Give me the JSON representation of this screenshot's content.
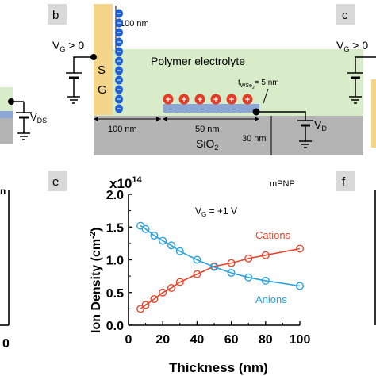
{
  "colors": {
    "gate": "#f5d58a",
    "electrolyte": "#d9ecc9",
    "substrate": "#b4b4b4",
    "channel": "#8ca6d6",
    "anion_blue": "#1f5fd1",
    "cation_red": "#e23b26",
    "cations_line": "#e8462c",
    "anions_line": "#2aa2dd"
  },
  "panel_labels": {
    "b": "b",
    "c": "c",
    "e": "e",
    "f": "f"
  },
  "panel_a": {
    "vds_label": "V",
    "vds_sub": "DS",
    "tick_label": "0",
    "ylabel_frag": "n"
  },
  "panel_b": {
    "vg_label": "V",
    "vg_sub": "G",
    "vg_rest": " > 0",
    "sg_s": "S",
    "sg_g": "G",
    "label_100nm_top": "100 nm",
    "electrolyte_label": "Polymer electrolyte",
    "twse_t": "t",
    "twse_sub": "WSe",
    "twse_sub2": "2",
    "twse_rest": "= 5 nm",
    "label_100nm_bottom": "100 nm",
    "label_50nm": "50 nm",
    "sio2": "SiO",
    "sio2_sub": "2",
    "label_30nm": "30 nm",
    "vd_label": "V",
    "vd_sub": "D",
    "minus": "−",
    "plus": "+"
  },
  "panel_c": {
    "vg_label": "V",
    "vg_sub": "G",
    "vg_rest": " > 0"
  },
  "chart_data": {
    "type": "line",
    "annotation_model": "mPNP",
    "annotation_vg": "V",
    "annotation_vg_sub": "G",
    "annotation_vg_rest": " = +1 V",
    "xlabel": "Thickness  (nm)",
    "ylabel": "Ion Density (cm",
    "ylabel_sup": "-2",
    "ylabel_end": ")",
    "scale_label": "x10",
    "scale_sup": "14",
    "xlim": [
      0,
      100
    ],
    "ylim": [
      0,
      2.0
    ],
    "xticks": [
      "0",
      "20",
      "40",
      "60",
      "80",
      "100"
    ],
    "yticks": [
      "0.0",
      "0.5",
      "1.0",
      "1.5",
      "2.0"
    ],
    "series": [
      {
        "name": "Cations",
        "x": [
          7,
          10,
          15,
          20,
          25,
          30,
          40,
          50,
          60,
          70,
          80,
          100
        ],
        "y": [
          0.25,
          0.31,
          0.4,
          0.5,
          0.57,
          0.66,
          0.78,
          0.9,
          0.95,
          1.02,
          1.07,
          1.17
        ]
      },
      {
        "name": "Anions",
        "x": [
          7,
          10,
          15,
          20,
          25,
          30,
          40,
          50,
          60,
          70,
          80,
          100
        ],
        "y": [
          1.52,
          1.47,
          1.37,
          1.29,
          1.22,
          1.13,
          1.0,
          0.89,
          0.8,
          0.73,
          0.68,
          0.6
        ]
      }
    ]
  },
  "panel_f": {
    "label": "f"
  }
}
